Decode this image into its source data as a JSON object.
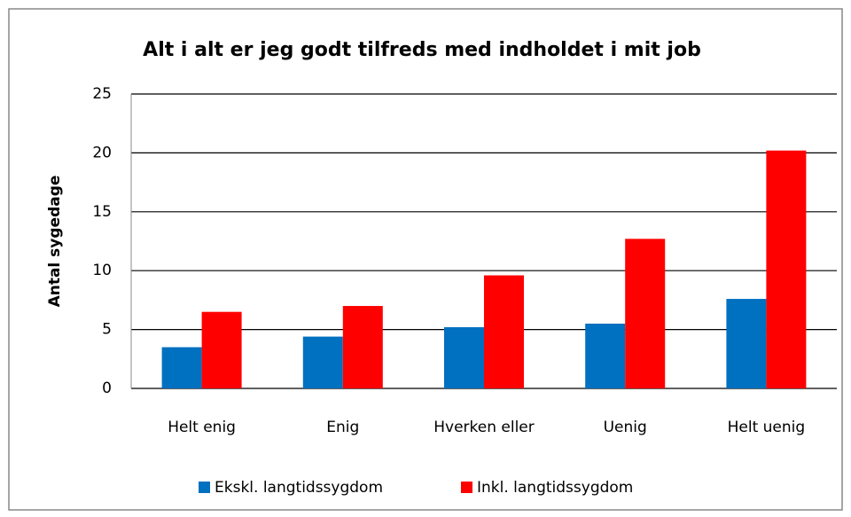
{
  "chart_data": {
    "type": "bar",
    "title": "Alt i alt er jeg godt tilfreds med indholdet i mit job",
    "y_label": "Antal sygedage",
    "categories": [
      "Helt enig",
      "Enig",
      "Hverken eller",
      "Uenig",
      "Helt uenig"
    ],
    "series": [
      {
        "name": "Ekskl. langtidssygdom",
        "color": "#0070c0",
        "values": [
          3.5,
          4.4,
          5.2,
          5.5,
          7.6
        ]
      },
      {
        "name": "Inkl. langtidssygdom",
        "color": "#ff0000",
        "values": [
          6.5,
          7.0,
          9.6,
          12.7,
          20.2
        ]
      }
    ],
    "ylim": [
      0,
      25
    ],
    "yticks": [
      0,
      5,
      10,
      15,
      20,
      25
    ],
    "grid": true,
    "legend": "bottom"
  }
}
